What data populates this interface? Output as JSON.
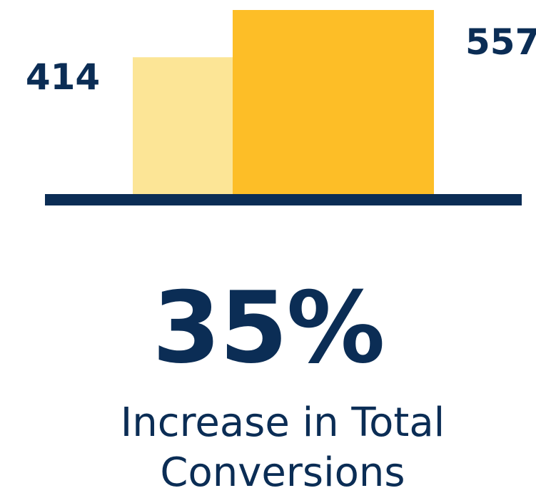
{
  "chart_data": {
    "type": "bar",
    "categories": [
      "",
      ""
    ],
    "values": [
      414,
      557
    ],
    "data_labels": [
      "414",
      "557"
    ],
    "colors": [
      "#fce596",
      "#fdbe27"
    ],
    "axis_color": "#0b2d55",
    "title": "",
    "xlabel": "",
    "ylabel": "",
    "grid": false,
    "legend": "none"
  },
  "stat": {
    "value": "35%",
    "caption_line1": "Increase in Total",
    "caption_line2": "Conversions"
  }
}
